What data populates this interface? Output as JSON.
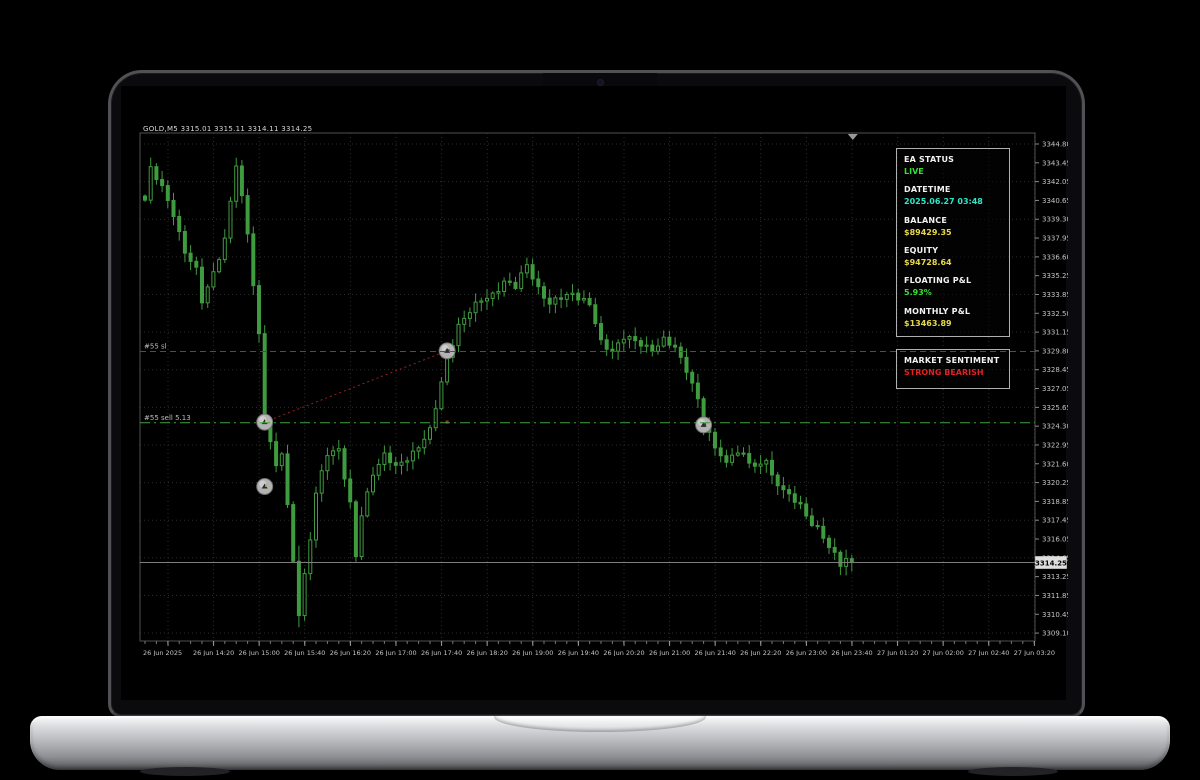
{
  "window": {
    "ohlc_header": "GOLD,M5  3315.01 3315.11 3314.11 3314.25"
  },
  "info_panel": {
    "ea_status": {
      "label": "EA STATUS",
      "value": "LIVE"
    },
    "datetime": {
      "label": "DATETIME",
      "value": "2025.06.27 03:48"
    },
    "balance": {
      "label": "BALANCE",
      "value": "$89429.35"
    },
    "equity": {
      "label": "EQUITY",
      "value": "$94728.64"
    },
    "floating_pl": {
      "label": "FLOATING P&L",
      "value": "5.93%"
    },
    "monthly_pl": {
      "label": "MONTHLY P&L",
      "value": "$13463.89"
    }
  },
  "sentiment_panel": {
    "label": "MARKET SENTIMENT",
    "value": "STRONG BEARISH"
  },
  "colors": {
    "candle_green": "#3f9b3f",
    "grid": "#2d2d2d",
    "frame": "#4f4f4f",
    "stop_loss_red": "#bb2020",
    "sell_line_green": "#3da33d",
    "bid_line_gray": "#7d7d7d",
    "live_green": "#33e033",
    "datetime_teal": "#2ee6c8",
    "money_yellow": "#e8d94a",
    "bearish_red": "#e02222"
  },
  "chart_data": {
    "type": "candlestick",
    "title": "GOLD,M5",
    "symbol": "GOLD",
    "timeframe": "M5",
    "current_price": 3314.25,
    "current_price_label": "3314.25",
    "price_range": {
      "top": 3344.8,
      "bottom": 3309.1
    },
    "y_axis_labels": [
      "3344.80",
      "3343.45",
      "3342.05",
      "3340.65",
      "3339.30",
      "3337.95",
      "3336.60",
      "3335.25",
      "3333.85",
      "3332.50",
      "3331.15",
      "3329.80",
      "3328.45",
      "3327.05",
      "3325.65",
      "3324.30",
      "3322.95",
      "3321.60",
      "3320.25",
      "3318.85",
      "3317.45",
      "3316.05",
      "3314.65",
      "3313.25",
      "3311.85",
      "3310.45",
      "3309.10"
    ],
    "x_axis_labels": [
      "26 Jun 2025",
      "26 Jun 14:20",
      "26 Jun 15:00",
      "26 Jun 15:40",
      "26 Jun 16:20",
      "26 Jun 17:00",
      "26 Jun 17:40",
      "26 Jun 18:20",
      "26 Jun 19:00",
      "26 Jun 19:40",
      "26 Jun 20:20",
      "26 Jun 21:00",
      "26 Jun 21:40",
      "26 Jun 22:20",
      "26 Jun 23:00",
      "26 Jun 23:40",
      "27 Jun 01:20",
      "27 Jun 02:00",
      "27 Jun 02:40",
      "27 Jun 03:20"
    ],
    "num_candles": 125,
    "price_path": [
      [
        0,
        3340.7
      ],
      [
        1,
        3342.9
      ],
      [
        3,
        3341.6
      ],
      [
        5,
        3339.8
      ],
      [
        7,
        3336.9
      ],
      [
        9,
        3335.5
      ],
      [
        10,
        3333.3
      ],
      [
        12,
        3335.5
      ],
      [
        14,
        3337.8
      ],
      [
        16,
        3343.2
      ],
      [
        18,
        3338.4
      ],
      [
        20,
        3330.9
      ],
      [
        21,
        3324.7
      ],
      [
        23,
        3321.1
      ],
      [
        24,
        3322.3
      ],
      [
        25,
        3318.4
      ],
      [
        27,
        3310.6
      ],
      [
        29,
        3315.9
      ],
      [
        30,
        3319.2
      ],
      [
        32,
        3322.3
      ],
      [
        34,
        3322.6
      ],
      [
        36,
        3318.4
      ],
      [
        37,
        3314.6
      ],
      [
        38,
        3317.7
      ],
      [
        40,
        3320.9
      ],
      [
        42,
        3322.1
      ],
      [
        44,
        3321.1
      ],
      [
        46,
        3321.9
      ],
      [
        48,
        3322.8
      ],
      [
        50,
        3323.8
      ],
      [
        51,
        3325.5
      ],
      [
        53,
        3329.2
      ],
      [
        55,
        3331.6
      ],
      [
        57,
        3332.5
      ],
      [
        59,
        3333.4
      ],
      [
        61,
        3333.9
      ],
      [
        63,
        3334.7
      ],
      [
        65,
        3334.3
      ],
      [
        67,
        3336.1
      ],
      [
        69,
        3334.3
      ],
      [
        71,
        3333.0
      ],
      [
        73,
        3333.6
      ],
      [
        75,
        3334.0
      ],
      [
        78,
        3333.0
      ],
      [
        80,
        3330.3
      ],
      [
        82,
        3329.8
      ],
      [
        84,
        3330.7
      ],
      [
        86,
        3330.3
      ],
      [
        89,
        3329.9
      ],
      [
        91,
        3330.5
      ],
      [
        93,
        3329.8
      ],
      [
        95,
        3328.4
      ],
      [
        97,
        3326.3
      ],
      [
        98,
        3324.3
      ],
      [
        100,
        3322.6
      ],
      [
        102,
        3321.5
      ],
      [
        103,
        3322.4
      ],
      [
        105,
        3322.1
      ],
      [
        107,
        3321.0
      ],
      [
        109,
        3321.9
      ],
      [
        110,
        3320.6
      ],
      [
        113,
        3319.0
      ],
      [
        115,
        3318.4
      ],
      [
        116,
        3317.7
      ],
      [
        118,
        3316.8
      ],
      [
        120,
        3315.3
      ],
      [
        122,
        3314.1
      ],
      [
        123,
        3314.6
      ],
      [
        124,
        3314.25
      ]
    ],
    "lines": {
      "stop_loss": {
        "label": "#55 sl",
        "price": 3329.65,
        "style": "dashed",
        "color": "#bb2020"
      },
      "sell_entry": {
        "label": "#55 sell 5.13",
        "price": 3324.45,
        "style": "dash-dot",
        "color": "#3da33d"
      }
    },
    "trade_markers": [
      {
        "candle": 21,
        "price": 3324.5
      },
      {
        "candle": 21,
        "price": 3319.8
      },
      {
        "candle": 53,
        "price": 3329.7
      },
      {
        "candle": 98,
        "price": 3324.3
      }
    ],
    "trade_connection": {
      "from": {
        "candle": 21,
        "price": 3324.5
      },
      "to": {
        "candle": 53,
        "price": 3329.7
      },
      "color": "#992222"
    },
    "close_dot": {
      "candle": 53,
      "price": 3324.5,
      "color": "#cc2222"
    },
    "legend_position": "none",
    "grid": true
  }
}
